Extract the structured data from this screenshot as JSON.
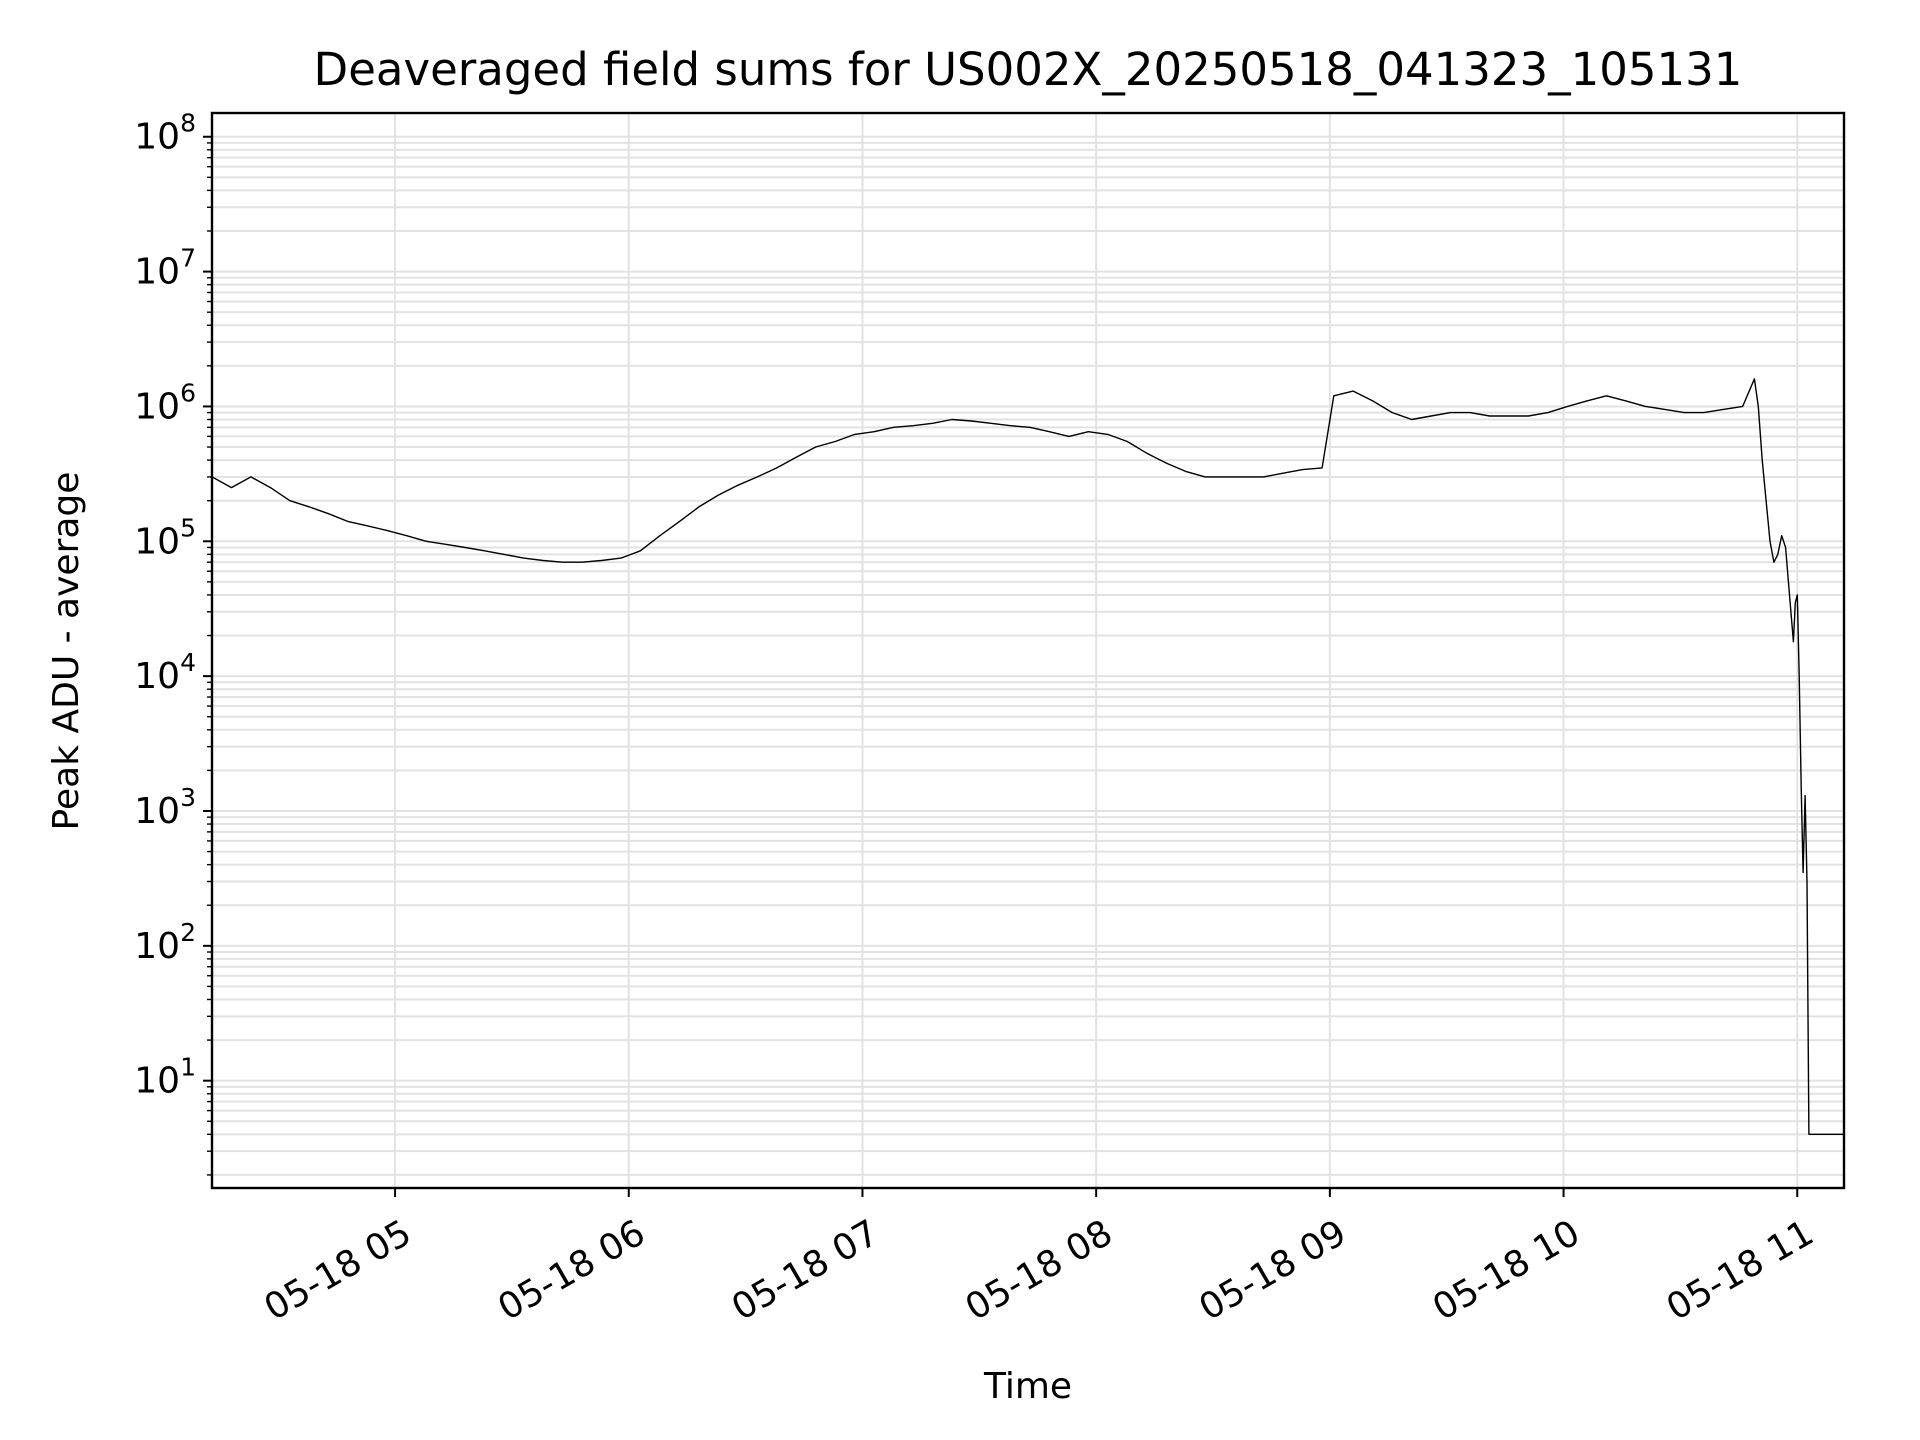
{
  "chart_data": {
    "type": "line",
    "title": "Deaveraged field sums for US002X_20250518_041323_105131",
    "xlabel": "Time",
    "ylabel": "Peak ADU - average",
    "yscale": "log",
    "xlim": [
      "05-18 04:13",
      "05-18 11:12"
    ],
    "ylim": [
      1.6,
      150000000
    ],
    "grid": "on (major and minor)",
    "x_ticks": [
      {
        "t": "05-18 05:00",
        "label": "05-18 05"
      },
      {
        "t": "05-18 06:00",
        "label": "05-18 06"
      },
      {
        "t": "05-18 07:00",
        "label": "05-18 07"
      },
      {
        "t": "05-18 08:00",
        "label": "05-18 08"
      },
      {
        "t": "05-18 09:00",
        "label": "05-18 09"
      },
      {
        "t": "05-18 10:00",
        "label": "05-18 10"
      },
      {
        "t": "05-18 11:00",
        "label": "05-18 11"
      }
    ],
    "y_ticks": [
      {
        "v": 10,
        "base": "10",
        "exp": "1"
      },
      {
        "v": 100,
        "base": "10",
        "exp": "2"
      },
      {
        "v": 1000,
        "base": "10",
        "exp": "3"
      },
      {
        "v": 10000,
        "base": "10",
        "exp": "4"
      },
      {
        "v": 100000,
        "base": "10",
        "exp": "5"
      },
      {
        "v": 1000000,
        "base": "10",
        "exp": "6"
      },
      {
        "v": 10000000,
        "base": "10",
        "exp": "7"
      },
      {
        "v": 100000000,
        "base": "10",
        "exp": "8"
      }
    ],
    "series": [
      {
        "color": "#000000",
        "points": [
          [
            "05-18 04:13",
            300000
          ],
          [
            "05-18 04:18",
            250000
          ],
          [
            "05-18 04:23",
            300000
          ],
          [
            "05-18 04:28",
            250000
          ],
          [
            "05-18 04:33",
            200000
          ],
          [
            "05-18 04:38",
            180000
          ],
          [
            "05-18 04:43",
            160000
          ],
          [
            "05-18 04:48",
            140000
          ],
          [
            "05-18 04:53",
            130000
          ],
          [
            "05-18 04:58",
            120000
          ],
          [
            "05-18 05:03",
            110000
          ],
          [
            "05-18 05:08",
            100000
          ],
          [
            "05-18 05:13",
            95000
          ],
          [
            "05-18 05:18",
            90000
          ],
          [
            "05-18 05:23",
            85000
          ],
          [
            "05-18 05:28",
            80000
          ],
          [
            "05-18 05:33",
            75000
          ],
          [
            "05-18 05:38",
            72000
          ],
          [
            "05-18 05:43",
            70000
          ],
          [
            "05-18 05:48",
            70000
          ],
          [
            "05-18 05:53",
            72000
          ],
          [
            "05-18 05:58",
            75000
          ],
          [
            "05-18 06:03",
            85000
          ],
          [
            "05-18 06:08",
            110000
          ],
          [
            "05-18 06:13",
            140000
          ],
          [
            "05-18 06:18",
            180000
          ],
          [
            "05-18 06:23",
            220000
          ],
          [
            "05-18 06:28",
            260000
          ],
          [
            "05-18 06:33",
            300000
          ],
          [
            "05-18 06:38",
            350000
          ],
          [
            "05-18 06:43",
            420000
          ],
          [
            "05-18 06:48",
            500000
          ],
          [
            "05-18 06:53",
            550000
          ],
          [
            "05-18 06:58",
            620000
          ],
          [
            "05-18 07:03",
            650000
          ],
          [
            "05-18 07:08",
            700000
          ],
          [
            "05-18 07:13",
            720000
          ],
          [
            "05-18 07:18",
            750000
          ],
          [
            "05-18 07:23",
            800000
          ],
          [
            "05-18 07:28",
            780000
          ],
          [
            "05-18 07:33",
            750000
          ],
          [
            "05-18 07:38",
            720000
          ],
          [
            "05-18 07:43",
            700000
          ],
          [
            "05-18 07:48",
            650000
          ],
          [
            "05-18 07:53",
            600000
          ],
          [
            "05-18 07:58",
            650000
          ],
          [
            "05-18 08:03",
            620000
          ],
          [
            "05-18 08:08",
            550000
          ],
          [
            "05-18 08:13",
            450000
          ],
          [
            "05-18 08:18",
            380000
          ],
          [
            "05-18 08:23",
            330000
          ],
          [
            "05-18 08:28",
            300000
          ],
          [
            "05-18 08:33",
            300000
          ],
          [
            "05-18 08:38",
            300000
          ],
          [
            "05-18 08:43",
            300000
          ],
          [
            "05-18 08:48",
            320000
          ],
          [
            "05-18 08:53",
            340000
          ],
          [
            "05-18 08:58",
            350000
          ],
          [
            "05-18 09:01",
            1200000
          ],
          [
            "05-18 09:06",
            1300000
          ],
          [
            "05-18 09:11",
            1100000
          ],
          [
            "05-18 09:16",
            900000
          ],
          [
            "05-18 09:21",
            800000
          ],
          [
            "05-18 09:26",
            850000
          ],
          [
            "05-18 09:31",
            900000
          ],
          [
            "05-18 09:36",
            900000
          ],
          [
            "05-18 09:41",
            850000
          ],
          [
            "05-18 09:46",
            850000
          ],
          [
            "05-18 09:51",
            850000
          ],
          [
            "05-18 09:56",
            900000
          ],
          [
            "05-18 10:01",
            1000000
          ],
          [
            "05-18 10:06",
            1100000
          ],
          [
            "05-18 10:11",
            1200000
          ],
          [
            "05-18 10:16",
            1100000
          ],
          [
            "05-18 10:21",
            1000000
          ],
          [
            "05-18 10:26",
            950000
          ],
          [
            "05-18 10:31",
            900000
          ],
          [
            "05-18 10:36",
            900000
          ],
          [
            "05-18 10:41",
            950000
          ],
          [
            "05-18 10:46",
            1000000
          ],
          [
            "05-18 10:49",
            1600000
          ],
          [
            "05-18 10:50",
            1000000
          ],
          [
            "05-18 10:51",
            400000
          ],
          [
            "05-18 10:52",
            200000
          ],
          [
            "05-18 10:53",
            100000
          ],
          [
            "05-18 10:54",
            70000
          ],
          [
            "05-18 10:55",
            80000
          ],
          [
            "05-18 10:56",
            110000
          ],
          [
            "05-18 10:57",
            90000
          ],
          [
            "05-18 10:58",
            40000
          ],
          [
            "05-18 10:59",
            18000
          ],
          [
            "05-18 10:59:30",
            35000
          ],
          [
            "05-18 11:00",
            40000
          ],
          [
            "05-18 11:00:30",
            10000
          ],
          [
            "05-18 11:01",
            1500
          ],
          [
            "05-18 11:01:30",
            350
          ],
          [
            "05-18 11:02",
            1300
          ],
          [
            "05-18 11:02:30",
            300
          ],
          [
            "05-18 11:03",
            4
          ],
          [
            "05-18 11:12",
            4
          ]
        ]
      }
    ]
  }
}
